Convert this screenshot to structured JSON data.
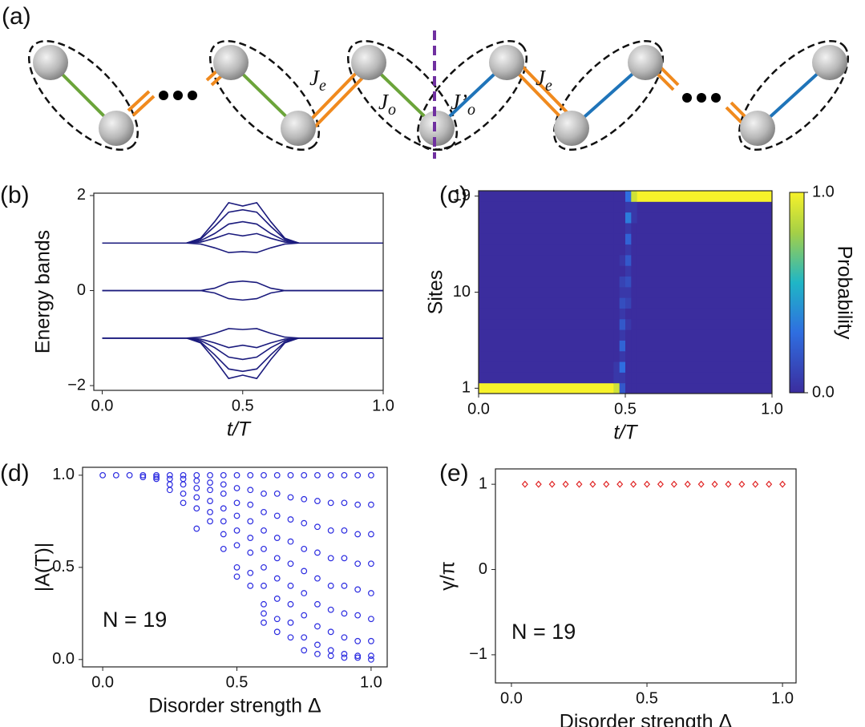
{
  "diagram": {
    "label": "(a)",
    "couplings": [
      {
        "symbol": "J",
        "sub": "e"
      },
      {
        "symbol": "J",
        "sub": "o"
      },
      {
        "symbol": "J’",
        "sub": "o"
      },
      {
        "symbol": "J",
        "sub": "e"
      }
    ]
  },
  "chart_data": [
    {
      "type": "line",
      "panel": "(b)",
      "xlabel": "t/T",
      "ylabel": "Energy bands",
      "color": "#1b1b7d",
      "x": [
        0,
        0.3,
        0.35,
        0.4,
        0.45,
        0.5,
        0.55,
        0.6,
        0.65,
        0.7,
        1.0
      ],
      "series": [
        {
          "values": [
            1,
            1,
            1.1,
            1.45,
            1.85,
            1.78,
            1.85,
            1.45,
            1.1,
            1,
            1
          ]
        },
        {
          "values": [
            1,
            1,
            1.08,
            1.35,
            1.65,
            1.7,
            1.65,
            1.35,
            1.08,
            1,
            1
          ]
        },
        {
          "values": [
            1,
            1,
            1.05,
            1.2,
            1.4,
            1.45,
            1.4,
            1.2,
            1.05,
            1,
            1
          ]
        },
        {
          "values": [
            1,
            1,
            1.02,
            1.1,
            1.2,
            1.15,
            1.2,
            1.1,
            1.02,
            1,
            1
          ]
        },
        {
          "values": [
            1,
            1,
            0.98,
            0.9,
            0.8,
            0.82,
            0.8,
            0.9,
            0.98,
            1,
            1
          ]
        },
        {
          "values": [
            0,
            0,
            0,
            0.05,
            0.17,
            0.2,
            0.17,
            0.05,
            0,
            0,
            0
          ]
        },
        {
          "values": [
            0,
            0,
            0,
            -0.05,
            -0.17,
            -0.2,
            -0.17,
            -0.05,
            0,
            0,
            0
          ]
        },
        {
          "values": [
            -1,
            -1,
            -0.98,
            -0.9,
            -0.8,
            -0.82,
            -0.8,
            -0.9,
            -0.98,
            -1,
            -1
          ]
        },
        {
          "values": [
            -1,
            -1,
            -1.02,
            -1.1,
            -1.2,
            -1.15,
            -1.2,
            -1.1,
            -1.02,
            -1,
            -1
          ]
        },
        {
          "values": [
            -1,
            -1,
            -1.05,
            -1.2,
            -1.4,
            -1.45,
            -1.4,
            -1.2,
            -1.05,
            -1,
            -1
          ]
        },
        {
          "values": [
            -1,
            -1,
            -1.08,
            -1.35,
            -1.65,
            -1.7,
            -1.65,
            -1.35,
            -1.08,
            -1,
            -1
          ]
        },
        {
          "values": [
            -1,
            -1,
            -1.1,
            -1.45,
            -1.85,
            -1.78,
            -1.85,
            -1.45,
            -1.1,
            -1,
            -1
          ]
        }
      ],
      "xlim": [
        -0.03,
        1.0
      ],
      "xticks": [
        {
          "value": 0,
          "label": "0.0"
        },
        {
          "value": 0.5,
          "label": "0.5"
        },
        {
          "value": 1,
          "label": "1.0"
        }
      ],
      "ylim": [
        -2.1,
        2.05
      ],
      "yticks": [
        {
          "value": -2,
          "label": "−2"
        },
        0,
        2
      ]
    },
    {
      "type": "heatmap",
      "panel": "(c)",
      "xlabel": "t/T",
      "ylabel": "Sites",
      "xbins": [
        0,
        0.46,
        0.48,
        0.5,
        0.52,
        0.54,
        1.0
      ],
      "y": [
        1,
        2,
        3,
        4,
        5,
        6,
        7,
        8,
        9,
        10,
        11,
        12,
        13,
        14,
        15,
        16,
        17,
        18,
        19
      ],
      "values": [
        [
          1,
          0.9,
          0.2,
          0,
          0,
          0
        ],
        [
          0,
          0.05,
          0.05,
          0,
          0,
          0
        ],
        [
          0,
          0.05,
          0.3,
          0,
          0,
          0
        ],
        [
          0,
          0,
          0.05,
          0,
          0,
          0
        ],
        [
          0,
          0,
          0.25,
          0,
          0,
          0
        ],
        [
          0,
          0,
          0.05,
          0,
          0,
          0
        ],
        [
          0,
          0,
          0.2,
          0.05,
          0,
          0
        ],
        [
          0,
          0,
          0.05,
          0,
          0,
          0
        ],
        [
          0,
          0,
          0.15,
          0.1,
          0,
          0
        ],
        [
          0,
          0,
          0.05,
          0.05,
          0,
          0
        ],
        [
          0,
          0,
          0.1,
          0.15,
          0,
          0
        ],
        [
          0,
          0,
          0,
          0.05,
          0,
          0
        ],
        [
          0,
          0,
          0.05,
          0.2,
          0,
          0
        ],
        [
          0,
          0,
          0,
          0.05,
          0,
          0
        ],
        [
          0,
          0,
          0,
          0.25,
          0,
          0
        ],
        [
          0,
          0,
          0,
          0.05,
          0,
          0
        ],
        [
          0,
          0,
          0,
          0.35,
          0.05,
          0
        ],
        [
          0,
          0,
          0,
          0.05,
          0.05,
          0
        ],
        [
          0,
          0,
          0,
          0.3,
          0.9,
          1
        ]
      ],
      "colorscale": [
        [
          0,
          "#3b2d9e"
        ],
        [
          0.3,
          "#2f6ee0"
        ],
        [
          0.55,
          "#1fb6c6"
        ],
        [
          0.8,
          "#a5d046"
        ],
        [
          1,
          "#f7f22a"
        ]
      ],
      "colorbar": {
        "label": "Probability",
        "lim": [
          0,
          1
        ],
        "ticks": [
          {
            "value": 0,
            "label": "0.0"
          },
          {
            "value": 1,
            "label": "1.0"
          }
        ]
      },
      "xlim": [
        0,
        1
      ],
      "xticks": [
        {
          "value": 0,
          "label": "0.0"
        },
        {
          "value": 0.5,
          "label": "0.5"
        },
        {
          "value": 1,
          "label": "1.0"
        }
      ],
      "ylim": [
        0.5,
        19.5
      ],
      "yticks": [
        1,
        10,
        19
      ]
    },
    {
      "type": "scatter",
      "panel": "(d)",
      "xlabel": "Disorder strength Δ",
      "ylabel": "|A(T)|",
      "annotation": "N = 19",
      "color": "#2b2be0",
      "marker": "circle",
      "x": [
        0,
        0.05,
        0.1,
        0.15,
        0.15,
        0.2,
        0.2,
        0.2,
        0.25,
        0.25,
        0.25,
        0.25,
        0.3,
        0.3,
        0.3,
        0.3,
        0.3,
        0.35,
        0.35,
        0.35,
        0.35,
        0.35,
        0.35,
        0.4,
        0.4,
        0.4,
        0.4,
        0.4,
        0.4,
        0.45,
        0.45,
        0.45,
        0.45,
        0.45,
        0.45,
        0.45,
        0.5,
        0.5,
        0.5,
        0.5,
        0.5,
        0.5,
        0.5,
        0.5,
        0.55,
        0.55,
        0.55,
        0.55,
        0.55,
        0.55,
        0.55,
        0.55,
        0.6,
        0.6,
        0.6,
        0.6,
        0.6,
        0.6,
        0.6,
        0.6,
        0.6,
        0.6,
        0.65,
        0.65,
        0.65,
        0.65,
        0.65,
        0.65,
        0.65,
        0.65,
        0.65,
        0.7,
        0.7,
        0.7,
        0.7,
        0.7,
        0.7,
        0.7,
        0.7,
        0.7,
        0.75,
        0.75,
        0.75,
        0.75,
        0.75,
        0.75,
        0.75,
        0.75,
        0.75,
        0.8,
        0.8,
        0.8,
        0.8,
        0.8,
        0.8,
        0.8,
        0.8,
        0.8,
        0.85,
        0.85,
        0.85,
        0.85,
        0.85,
        0.85,
        0.85,
        0.85,
        0.85,
        0.9,
        0.9,
        0.9,
        0.9,
        0.9,
        0.9,
        0.9,
        0.9,
        0.9,
        0.95,
        0.95,
        0.95,
        0.95,
        0.95,
        0.95,
        0.95,
        0.95,
        0.95,
        1.0,
        1.0,
        1.0,
        1.0,
        1.0,
        1.0,
        1.0,
        1.0,
        1.0
      ],
      "values": [
        1.0,
        1.0,
        1.0,
        1.0,
        0.99,
        1.0,
        0.99,
        0.98,
        1.0,
        0.98,
        0.95,
        0.92,
        1.0,
        0.98,
        0.95,
        0.9,
        0.85,
        1.0,
        0.97,
        0.93,
        0.88,
        0.82,
        0.71,
        1.0,
        0.96,
        0.92,
        0.86,
        0.8,
        0.75,
        1.0,
        0.95,
        0.9,
        0.82,
        0.75,
        0.68,
        0.6,
        1.0,
        0.93,
        0.85,
        0.78,
        0.7,
        0.62,
        0.5,
        0.45,
        1.0,
        0.92,
        0.84,
        0.75,
        0.66,
        0.58,
        0.47,
        0.4,
        1.0,
        0.9,
        0.8,
        0.7,
        0.6,
        0.5,
        0.4,
        0.3,
        0.25,
        0.2,
        1.0,
        0.9,
        0.78,
        0.66,
        0.55,
        0.44,
        0.33,
        0.22,
        0.15,
        1.0,
        0.88,
        0.76,
        0.64,
        0.52,
        0.4,
        0.3,
        0.2,
        0.12,
        1.0,
        0.87,
        0.74,
        0.6,
        0.48,
        0.36,
        0.24,
        0.12,
        0.05,
        1.0,
        0.86,
        0.72,
        0.58,
        0.44,
        0.3,
        0.18,
        0.08,
        0.03,
        1.0,
        0.85,
        0.7,
        0.55,
        0.4,
        0.27,
        0.15,
        0.05,
        0.02,
        1.0,
        0.85,
        0.7,
        0.55,
        0.4,
        0.25,
        0.12,
        0.03,
        0.01,
        1.0,
        0.84,
        0.68,
        0.52,
        0.38,
        0.24,
        0.1,
        0.02,
        0.01,
        1.0,
        0.84,
        0.68,
        0.52,
        0.36,
        0.22,
        0.1,
        0.02,
        0.0
      ],
      "xlim": [
        -0.075,
        1.06
      ],
      "xticks": [
        {
          "value": 0,
          "label": "0.0"
        },
        {
          "value": 0.5,
          "label": "0.5"
        },
        {
          "value": 1,
          "label": "1.0"
        }
      ],
      "ylim": [
        -0.04,
        1.043
      ],
      "yticks": [
        {
          "value": 0,
          "label": "0.0"
        },
        {
          "value": 0.5,
          "label": "0.5"
        },
        {
          "value": 1,
          "label": "1.0"
        }
      ]
    },
    {
      "type": "scatter",
      "panel": "(e)",
      "xlabel": "Disorder strength Δ",
      "ylabel": "γ/π",
      "annotation": "N = 19",
      "color": "#e02424",
      "marker": "diamond",
      "x": [
        0.05,
        0.1,
        0.15,
        0.2,
        0.25,
        0.3,
        0.35,
        0.4,
        0.45,
        0.5,
        0.55,
        0.6,
        0.65,
        0.7,
        0.75,
        0.8,
        0.85,
        0.9,
        0.95,
        1.0
      ],
      "values": [
        1,
        1,
        1,
        1,
        1,
        1,
        1,
        1,
        1,
        1,
        1,
        1,
        1,
        1,
        1,
        1,
        1,
        1,
        1,
        1
      ],
      "xlim": [
        -0.059,
        1.05
      ],
      "xticks": [
        {
          "value": 0,
          "label": "0.0"
        },
        {
          "value": 0.5,
          "label": "0.5"
        },
        {
          "value": 1,
          "label": "1.0"
        }
      ],
      "ylim": [
        -1.33,
        1.18
      ],
      "yticks": [
        {
          "value": -1,
          "label": "−1"
        },
        0,
        1
      ]
    }
  ]
}
